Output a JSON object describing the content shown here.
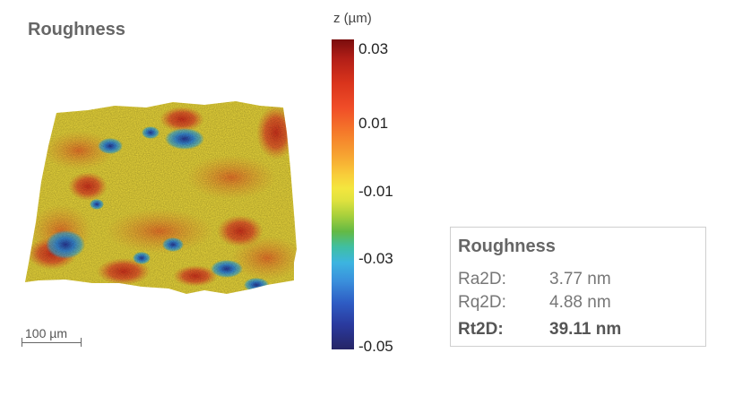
{
  "title": "Roughness",
  "scale_bar": {
    "label": "100 µm"
  },
  "colorbar": {
    "label": "z (µm)",
    "ticks": [
      "0.03",
      "0.01",
      "-0.01",
      "-0.03",
      "-0.05"
    ]
  },
  "results": {
    "title": "Roughness",
    "rows": [
      {
        "name": "Ra2D:",
        "value": "3.77 nm"
      },
      {
        "name": "Rq2D:",
        "value": "4.88 nm"
      },
      {
        "name": "Rt2D:",
        "value": "39.11 nm"
      }
    ]
  }
}
